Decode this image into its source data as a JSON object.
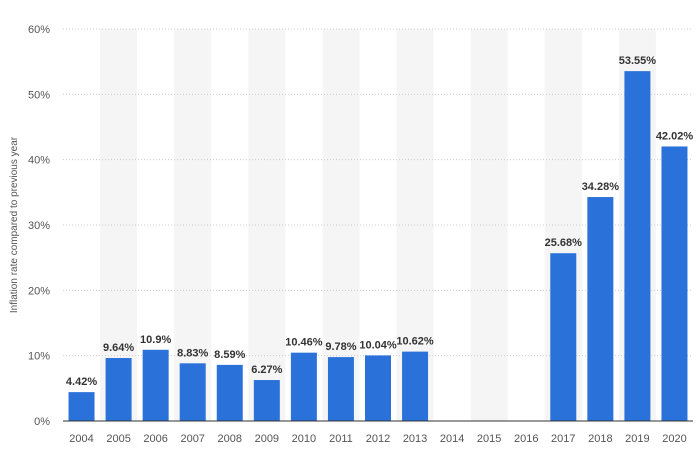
{
  "chart_data": {
    "type": "bar",
    "title": "",
    "xlabel": "",
    "ylabel": "Inflation rate compared to previous year",
    "ylim": [
      0,
      60
    ],
    "yticks": [
      0,
      10,
      20,
      30,
      40,
      50,
      60
    ],
    "ytick_labels": [
      "0%",
      "10%",
      "20%",
      "30%",
      "40%",
      "50%",
      "60%"
    ],
    "categories": [
      "2004",
      "2005",
      "2006",
      "2007",
      "2008",
      "2009",
      "2010",
      "2011",
      "2012",
      "2013",
      "2014",
      "2015",
      "2016",
      "2017",
      "2018",
      "2019",
      "2020"
    ],
    "values": [
      4.42,
      9.64,
      10.9,
      8.83,
      8.59,
      6.27,
      10.46,
      9.78,
      10.04,
      10.62,
      null,
      null,
      null,
      25.68,
      34.28,
      53.55,
      42.02
    ],
    "value_labels": [
      "4.42%",
      "9.64%",
      "10.9%",
      "8.83%",
      "8.59%",
      "6.27%",
      "10.46%",
      "9.78%",
      "10.04%",
      "10.62%",
      "",
      "",
      "",
      "25.68%",
      "34.28%",
      "53.55%",
      "42.02%"
    ],
    "grid": true,
    "legend": "none"
  },
  "colors": {
    "bar": "#2a72d9",
    "band": "#f5f5f5",
    "grid": "#cccccc",
    "axis": "#333333"
  }
}
